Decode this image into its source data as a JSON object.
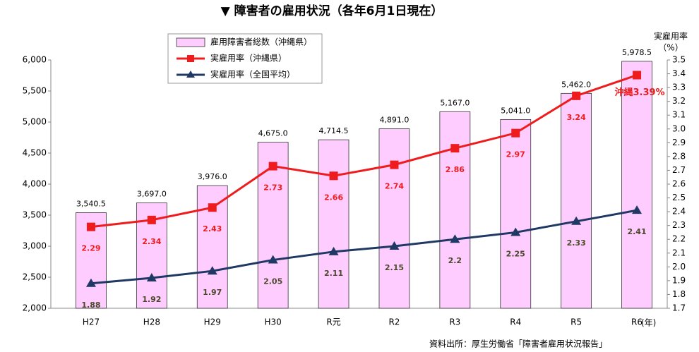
{
  "chart_data": {
    "type": "bar_line",
    "title": "▼ 障害者の雇用状況（各年6月1日現在）",
    "y2label": [
      "実雇用率",
      "（%）"
    ],
    "xunit": "(年)",
    "source": "資料出所：厚生労働省「障害者雇用状況報告」",
    "categories": [
      "H27",
      "H28",
      "H29",
      "H30",
      "R元",
      "R2",
      "R3",
      "R4",
      "R5",
      "R6"
    ],
    "series": [
      {
        "name": "雇用障害者総数（沖縄県）",
        "color": "#ffccff",
        "values": [
          3540.5,
          3697,
          3976,
          4675,
          4714.5,
          4891,
          5167,
          5041,
          5462,
          5978.5
        ],
        "value_labels": [
          "3,540.5",
          "3,697.0",
          "3,976.0",
          "4,675.0",
          "4,714.5",
          "4,891.0",
          "5,167.0",
          "5,041.0",
          "5,462.0",
          "5,978.5"
        ]
      },
      {
        "name": "実雇用率（沖縄県）",
        "color": "#ee1c1c",
        "axis": "y2",
        "values": [
          2.29,
          2.34,
          2.43,
          2.73,
          2.66,
          2.74,
          2.86,
          2.97,
          3.24,
          3.39
        ],
        "value_labels": [
          "2.29",
          "2.34",
          "2.43",
          "2.73",
          "2.66",
          "2.74",
          "2.86",
          "2.97",
          "3.24",
          "沖縄3.39%"
        ]
      },
      {
        "name": "実雇用率（全国平均）",
        "color": "#1f3864",
        "axis": "y2",
        "values": [
          1.88,
          1.92,
          1.97,
          2.05,
          2.11,
          2.15,
          2.2,
          2.25,
          2.33,
          2.41
        ]
      }
    ],
    "ylim": [
      2000,
      6000
    ],
    "yticks": [
      {
        "value": 2000,
        "label": "2,000"
      },
      {
        "value": 2500,
        "label": "2,500"
      },
      {
        "value": 3000,
        "label": "3,000"
      },
      {
        "value": 3500,
        "label": "3,500"
      },
      {
        "value": 4000,
        "label": "4,000"
      },
      {
        "value": 4500,
        "label": "4,500"
      },
      {
        "value": 5000,
        "label": "5,000"
      },
      {
        "value": 5500,
        "label": "5,500"
      },
      {
        "value": 6000,
        "label": "6,000"
      }
    ],
    "y2lim": [
      1.7,
      3.5
    ],
    "y2ticks": [
      1.7,
      1.8,
      1.9,
      {
        "value": 2,
        "label": "2.0"
      },
      2.1,
      2.2,
      2.3,
      2.4,
      2.5,
      2.6,
      2.7,
      2.8,
      2.9,
      {
        "value": 3,
        "label": "3.0"
      },
      3.1,
      3.2,
      3.3,
      3.4,
      3.5
    ]
  }
}
